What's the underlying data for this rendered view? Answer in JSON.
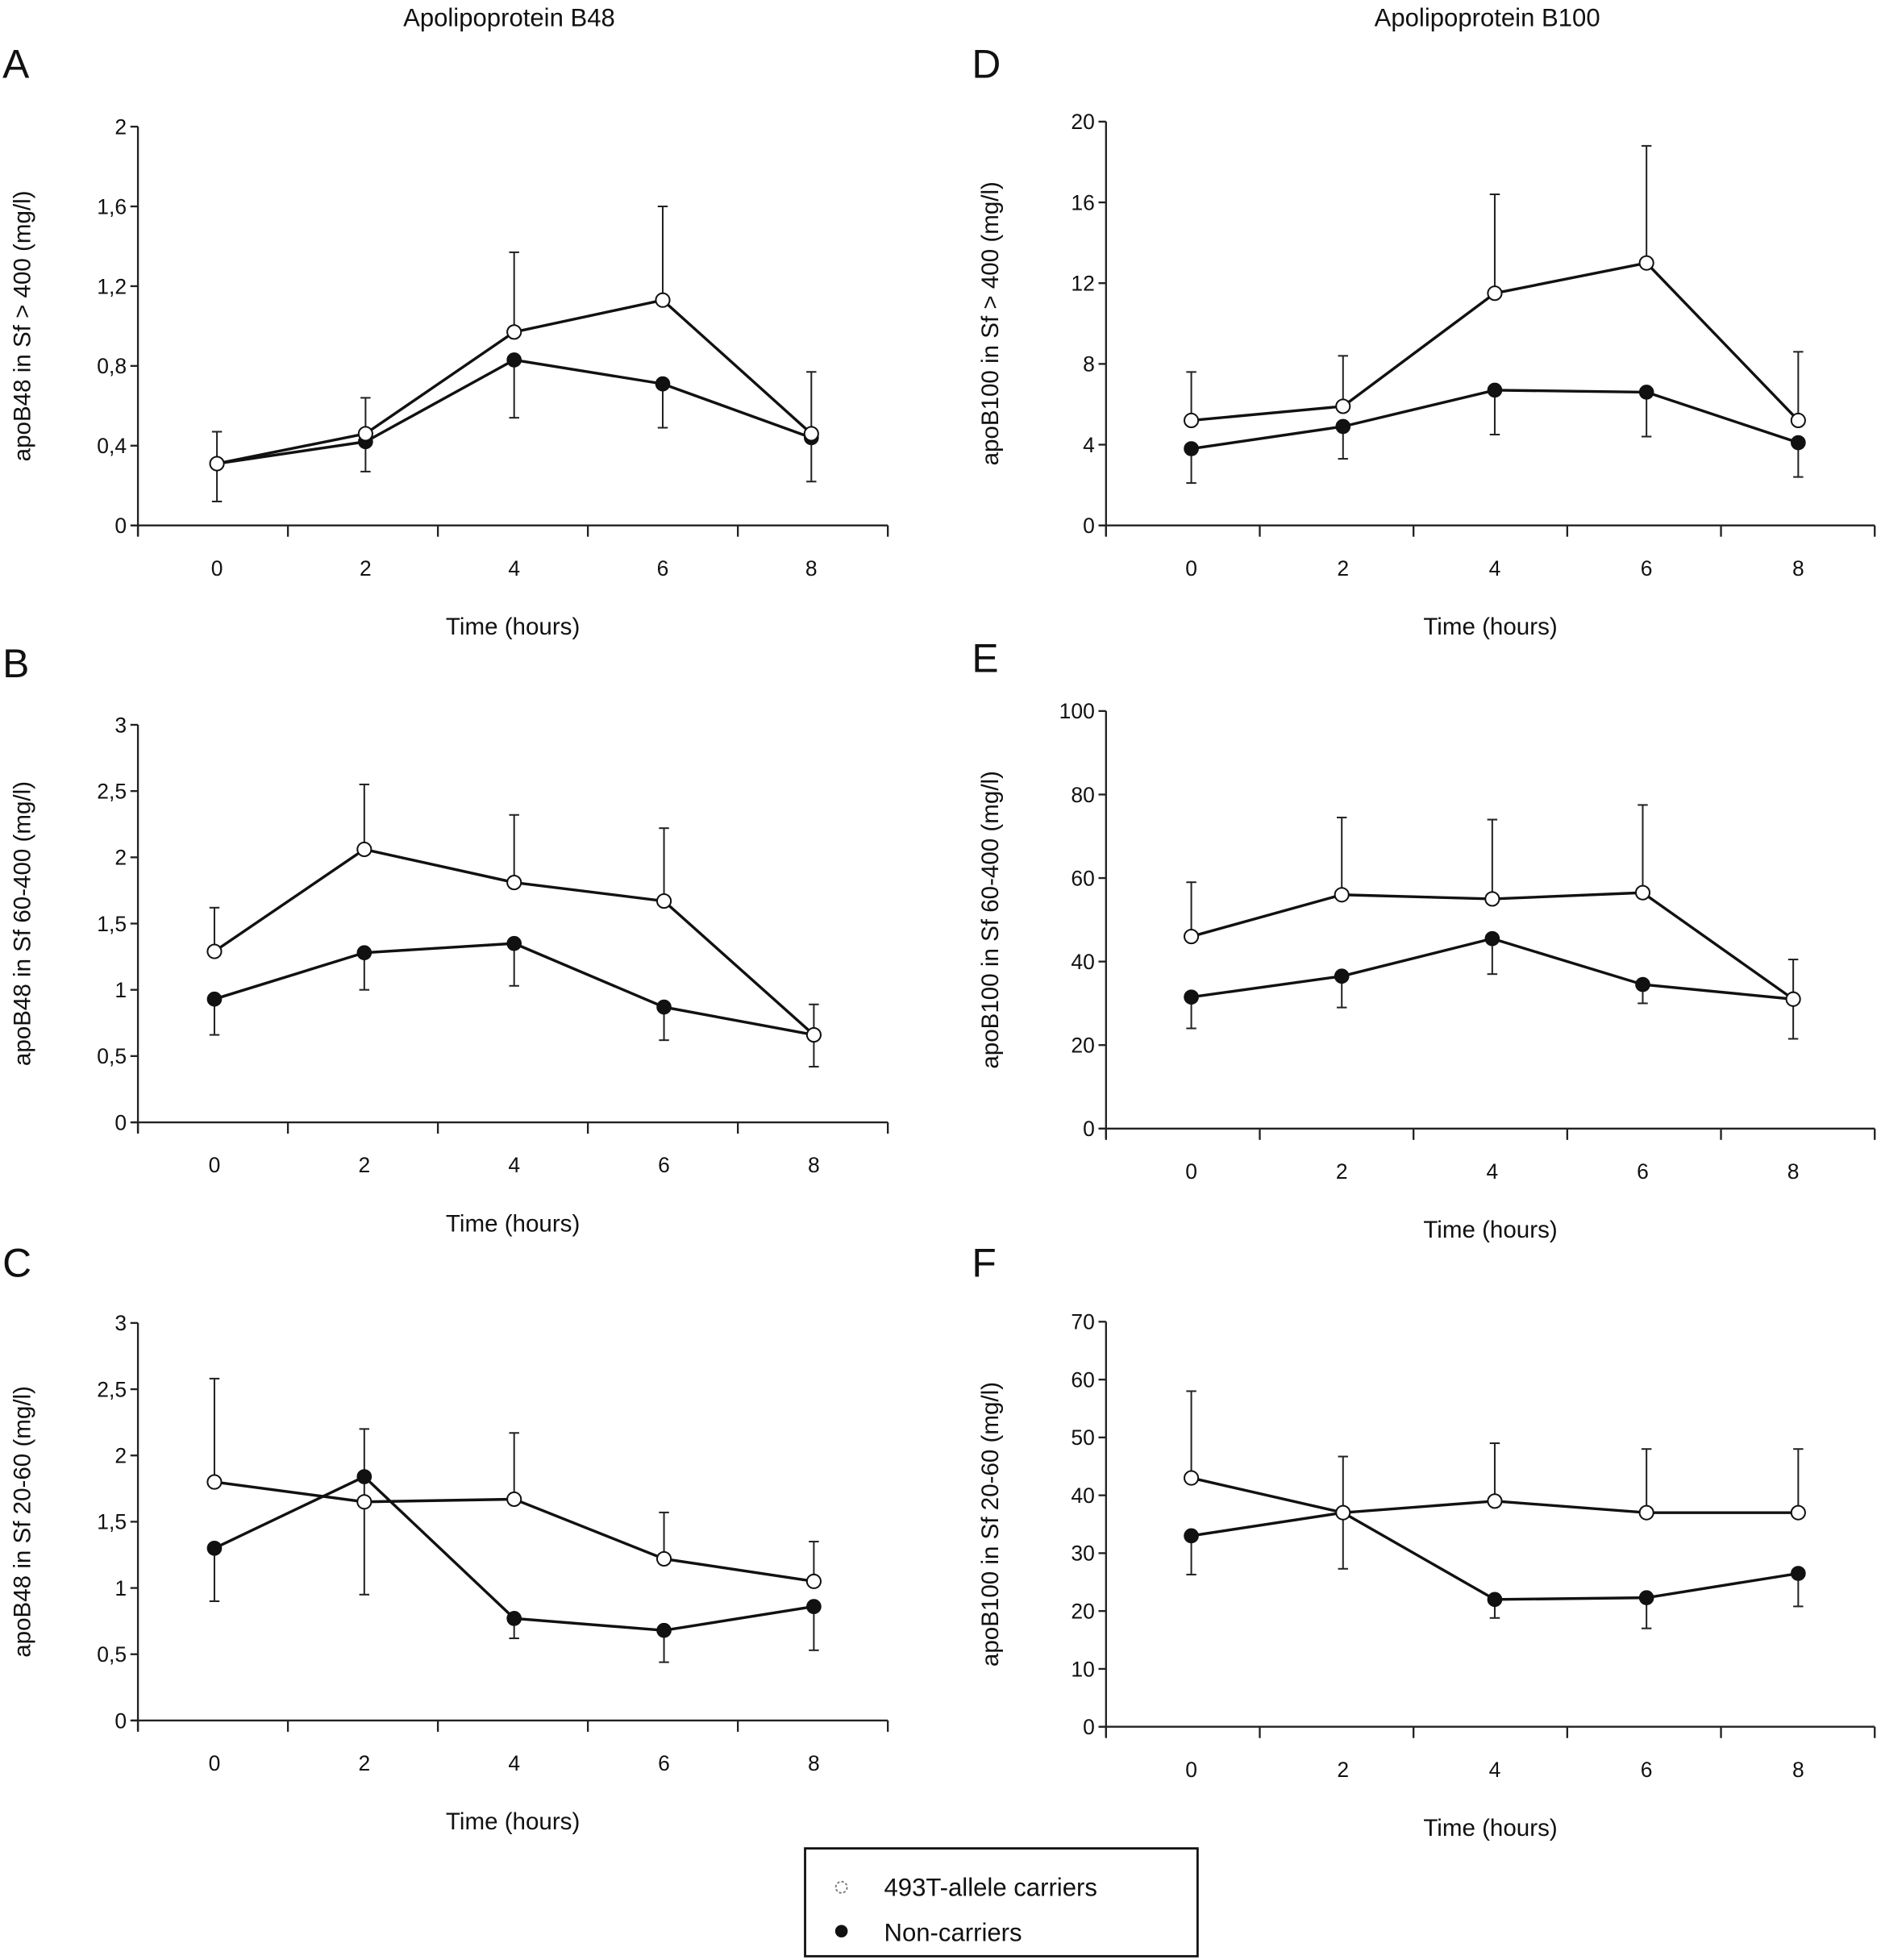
{
  "figure": {
    "column_titles": [
      "Apolipoprotein B48",
      "Apolipoprotein B100"
    ],
    "legend": {
      "items": [
        {
          "label": "493T-allele carriers",
          "marker": "open-circle",
          "color": "#ffffff"
        },
        {
          "label": "Non-carriers",
          "marker": "filled-circle",
          "color": "#111111"
        }
      ]
    }
  },
  "chart_data": [
    {
      "panel": "A",
      "type": "line",
      "column": 0,
      "row": 0,
      "title": "Apolipoprotein B48",
      "xlabel": "Time (hours)",
      "ylabel": "apoB48 in Sf > 400 (mg/l)",
      "x": [
        0,
        2,
        4,
        6,
        8
      ],
      "xticks": [
        "0",
        "2",
        "4",
        "6",
        "8"
      ],
      "ylim": [
        0,
        2
      ],
      "yticks": [
        0,
        0.4,
        0.8,
        1.2,
        1.6,
        2
      ],
      "ytick_labels": [
        "0",
        "0,4",
        "0,8",
        "1,2",
        "1,6",
        "2"
      ],
      "series": [
        {
          "name": "493T-allele carriers",
          "marker": "open",
          "values": [
            0.31,
            0.46,
            0.97,
            1.13,
            0.46
          ],
          "error_upper": [
            0.47,
            0.64,
            1.37,
            1.6,
            0.77
          ]
        },
        {
          "name": "Non-carriers",
          "marker": "filled",
          "values": [
            0.31,
            0.42,
            0.83,
            0.71,
            0.44
          ],
          "error_lower": [
            0.12,
            0.27,
            0.54,
            0.49,
            0.22
          ]
        }
      ]
    },
    {
      "panel": "B",
      "type": "line",
      "column": 0,
      "row": 1,
      "xlabel": "Time (hours)",
      "ylabel": "apoB48 in Sf 60-400 (mg/l)",
      "x": [
        0,
        2,
        4,
        6,
        8
      ],
      "xticks": [
        "0",
        "2",
        "4",
        "6",
        "8"
      ],
      "ylim": [
        0,
        3
      ],
      "yticks": [
        0,
        0.5,
        1,
        1.5,
        2,
        2.5,
        3
      ],
      "ytick_labels": [
        "0",
        "0,5",
        "1",
        "1,5",
        "2",
        "2,5",
        "3"
      ],
      "series": [
        {
          "name": "493T-allele carriers",
          "marker": "open",
          "values": [
            1.29,
            2.06,
            1.81,
            1.67,
            0.66
          ],
          "error_upper": [
            1.62,
            2.55,
            2.32,
            2.22,
            0.89
          ]
        },
        {
          "name": "Non-carriers",
          "marker": "filled",
          "values": [
            0.93,
            1.28,
            1.35,
            0.87,
            0.66
          ],
          "error_lower": [
            0.66,
            1.0,
            1.03,
            0.62,
            0.42
          ]
        }
      ]
    },
    {
      "panel": "C",
      "type": "line",
      "column": 0,
      "row": 2,
      "xlabel": "Time (hours)",
      "ylabel": "apoB48 in Sf 20-60 (mg/l)",
      "x": [
        0,
        2,
        4,
        6,
        8
      ],
      "xticks": [
        "0",
        "2",
        "4",
        "6",
        "8"
      ],
      "ylim": [
        0,
        3
      ],
      "yticks": [
        0,
        0.5,
        1,
        1.5,
        2,
        2.5,
        3
      ],
      "ytick_labels": [
        "0",
        "0,5",
        "1",
        "1,5",
        "2",
        "2,5",
        "3"
      ],
      "series": [
        {
          "name": "493T-allele carriers",
          "marker": "open",
          "values": [
            1.8,
            1.65,
            1.67,
            1.22,
            1.05
          ],
          "error_upper": [
            2.58,
            null,
            2.17,
            1.57,
            1.35
          ]
        },
        {
          "name": "Non-carriers",
          "marker": "filled",
          "values": [
            1.3,
            1.84,
            0.77,
            0.68,
            0.86
          ],
          "error_upper": [
            null,
            2.2,
            null,
            null,
            null
          ],
          "error_lower": [
            0.9,
            0.95,
            0.62,
            0.44,
            0.53
          ]
        }
      ]
    },
    {
      "panel": "D",
      "type": "line",
      "column": 1,
      "row": 0,
      "title": "Apolipoprotein B100",
      "xlabel": "Time (hours)",
      "ylabel": "apoB100 in Sf > 400 (mg/l)",
      "x": [
        0,
        2,
        4,
        6,
        8
      ],
      "xticks": [
        "0",
        "2",
        "4",
        "6",
        "8"
      ],
      "ylim": [
        0,
        20
      ],
      "yticks": [
        0,
        4,
        8,
        12,
        16,
        20
      ],
      "ytick_labels": [
        "0",
        "4",
        "8",
        "12",
        "16",
        "20"
      ],
      "series": [
        {
          "name": "493T-allele carriers",
          "marker": "open",
          "values": [
            5.2,
            5.9,
            11.5,
            13.0,
            5.2
          ],
          "error_upper": [
            7.6,
            8.4,
            16.4,
            18.8,
            8.6
          ]
        },
        {
          "name": "Non-carriers",
          "marker": "filled",
          "values": [
            3.8,
            4.9,
            6.7,
            6.6,
            4.1
          ],
          "error_lower": [
            2.1,
            3.3,
            4.5,
            4.4,
            2.4
          ]
        }
      ]
    },
    {
      "panel": "E",
      "type": "line",
      "column": 1,
      "row": 1,
      "xlabel": "Time (hours)",
      "ylabel": "apoB100 in Sf 60-400 (mg/l)",
      "x": [
        0,
        2,
        4,
        6,
        8
      ],
      "xticks": [
        "0",
        "2",
        "4",
        "6",
        "8"
      ],
      "ylim": [
        0,
        100
      ],
      "yticks": [
        0,
        20,
        40,
        60,
        80,
        100
      ],
      "ytick_labels": [
        "0",
        "20",
        "40",
        "60",
        "80",
        "100"
      ],
      "series": [
        {
          "name": "493T-allele carriers",
          "marker": "open",
          "values": [
            46,
            56,
            55,
            56.5,
            31
          ],
          "error_upper": [
            59,
            74.5,
            74,
            77.5,
            40.5
          ]
        },
        {
          "name": "Non-carriers",
          "marker": "filled",
          "values": [
            31.5,
            36.5,
            45.5,
            34.5,
            31
          ],
          "error_lower": [
            24,
            29,
            37,
            30,
            21.5
          ]
        }
      ]
    },
    {
      "panel": "F",
      "type": "line",
      "column": 1,
      "row": 2,
      "xlabel": "Time (hours)",
      "ylabel": "apoB100 in Sf 20-60 (mg/l)",
      "x": [
        0,
        2,
        4,
        6,
        8
      ],
      "xticks": [
        "0",
        "2",
        "4",
        "6",
        "8"
      ],
      "ylim": [
        0,
        70
      ],
      "yticks": [
        0,
        10,
        20,
        30,
        40,
        50,
        60,
        70
      ],
      "ytick_labels": [
        "0",
        "10",
        "20",
        "30",
        "40",
        "50",
        "60",
        "70"
      ],
      "series": [
        {
          "name": "493T-allele carriers",
          "marker": "open",
          "values": [
            43,
            37,
            39,
            37,
            37
          ],
          "error_upper": [
            58,
            46.7,
            49,
            48,
            48
          ]
        },
        {
          "name": "Non-carriers",
          "marker": "filled",
          "values": [
            33,
            37,
            22,
            22.3,
            26.5
          ],
          "error_lower": [
            26.3,
            27.3,
            18.8,
            17,
            20.8
          ]
        }
      ]
    }
  ]
}
